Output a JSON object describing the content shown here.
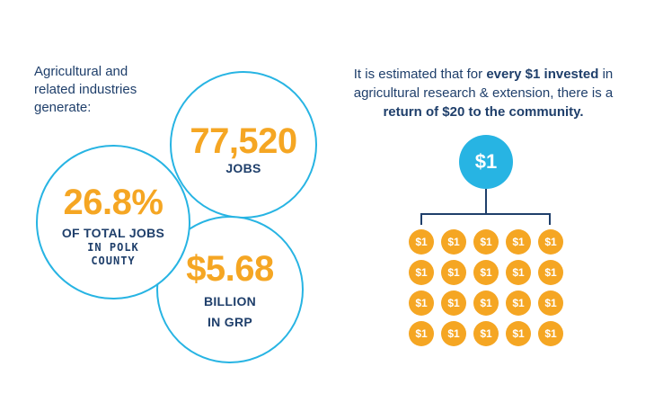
{
  "intro": {
    "line1": "Agricultural and",
    "line2": "related industries",
    "line3": "generate:"
  },
  "stats": {
    "jobs": {
      "value": "77,520",
      "label": "JOBS"
    },
    "percent": {
      "value": "26.8%",
      "label": "OF TOTAL JOBS",
      "sub1": "IN POLK",
      "sub2": "COUNTY"
    },
    "grp": {
      "value": "$5.68",
      "label1": "BILLION",
      "label2": "IN GRP"
    }
  },
  "statement": {
    "part1": "It is estimated that for ",
    "bold1": "every $1 invested",
    "part2": " in agricultural research & extension, there is a ",
    "bold2": "return of $20 to the community."
  },
  "root_coin": "$1",
  "return_coins": [
    "$1",
    "$1",
    "$1",
    "$1",
    "$1",
    "$1",
    "$1",
    "$1",
    "$1",
    "$1",
    "$1",
    "$1",
    "$1",
    "$1",
    "$1",
    "$1",
    "$1",
    "$1",
    "$1",
    "$1"
  ],
  "colors": {
    "navy": "#1f3f6b",
    "blue": "#27b4e3",
    "orange": "#f5a623"
  }
}
